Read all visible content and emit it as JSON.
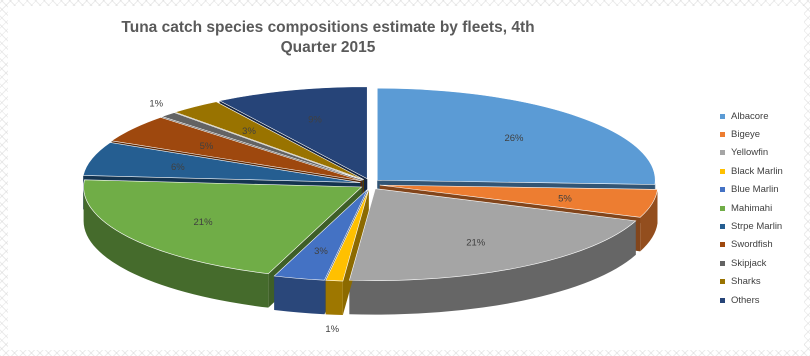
{
  "chart_data": {
    "type": "pie",
    "style": "exploded 3D pie",
    "title": "Tuna catch species compositions estimate by fleets, 4th Quarter 2015",
    "legend_position": "right",
    "slices": [
      {
        "name": "Albacore",
        "value": 26,
        "label": "26%",
        "color": "#5b9bd5"
      },
      {
        "name": "Bigeye",
        "value": 5,
        "label": "5%",
        "color": "#ed7d31"
      },
      {
        "name": "Yellowfin",
        "value": 21,
        "label": "21%",
        "color": "#a5a5a5"
      },
      {
        "name": "Black Marlin",
        "value": 1,
        "label": "1%",
        "color": "#ffc000"
      },
      {
        "name": "Blue Marlin",
        "value": 3,
        "label": "3%",
        "color": "#4472c4"
      },
      {
        "name": "Mahimahi",
        "value": 21,
        "label": "21%",
        "color": "#70ad47"
      },
      {
        "name": "Strpe Marlin",
        "value": 6,
        "label": "6%",
        "color": "#255e91"
      },
      {
        "name": "Swordfish",
        "value": 5,
        "label": "5%",
        "color": "#9e480e"
      },
      {
        "name": "Skipjack",
        "value": 1,
        "label": "1%",
        "color": "#636363"
      },
      {
        "name": "Sharks",
        "value": 3,
        "label": "3%",
        "color": "#997300"
      },
      {
        "name": "Others",
        "value": 9,
        "label": "9%",
        "color": "#264478"
      }
    ]
  }
}
